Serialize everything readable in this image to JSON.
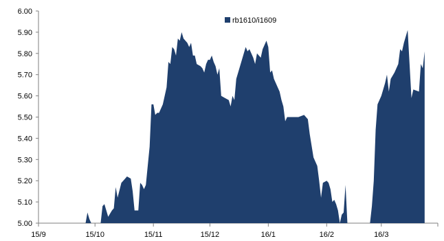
{
  "chart_data": {
    "type": "area",
    "title": "",
    "xlabel": "",
    "ylabel": "",
    "ylim": [
      5.0,
      6.0
    ],
    "xlim": [
      "2015-09-01",
      "2016-03-31"
    ],
    "y_ticks": [
      "5.00",
      "5.10",
      "5.20",
      "5.30",
      "5.40",
      "5.50",
      "5.60",
      "5.70",
      "5.80",
      "5.90",
      "6.00"
    ],
    "x_ticks": [
      {
        "label": "15/9",
        "date": "2015-09-01"
      },
      {
        "label": "15/10",
        "date": "2015-10-01"
      },
      {
        "label": "15/11",
        "date": "2015-11-01"
      },
      {
        "label": "15/12",
        "date": "2015-12-01"
      },
      {
        "label": "16/1",
        "date": "2016-01-01"
      },
      {
        "label": "16/2",
        "date": "2016-02-01"
      },
      {
        "label": "16/3",
        "date": "2016-03-01"
      }
    ],
    "legend": {
      "position": "top-center",
      "label": "rb1610/i1609"
    },
    "color": "#1f3f6d",
    "grid": false,
    "series": [
      {
        "name": "rb1610/i1609",
        "points": [
          [
            "2015-09-26",
            5.0
          ],
          [
            "2015-09-27",
            5.05
          ],
          [
            "2015-09-28",
            5.02
          ],
          [
            "2015-09-29",
            5.0
          ],
          [
            "2015-10-04",
            5.0
          ],
          [
            "2015-10-05",
            5.08
          ],
          [
            "2015-10-06",
            5.09
          ],
          [
            "2015-10-08",
            5.03
          ],
          [
            "2015-10-10",
            5.06
          ],
          [
            "2015-10-11",
            5.07
          ],
          [
            "2015-10-12",
            5.17
          ],
          [
            "2015-10-13",
            5.12
          ],
          [
            "2015-10-15",
            5.19
          ],
          [
            "2015-10-16",
            5.2
          ],
          [
            "2015-10-17",
            5.21
          ],
          [
            "2015-10-18",
            5.22
          ],
          [
            "2015-10-20",
            5.21
          ],
          [
            "2015-10-21",
            5.15
          ],
          [
            "2015-10-22",
            5.06
          ],
          [
            "2015-10-24",
            5.06
          ],
          [
            "2015-10-25",
            5.19
          ],
          [
            "2015-10-26",
            5.18
          ],
          [
            "2015-10-27",
            5.16
          ],
          [
            "2015-10-28",
            5.18
          ],
          [
            "2015-10-30",
            5.36
          ],
          [
            "2015-10-31",
            5.56
          ],
          [
            "2015-11-01",
            5.56
          ],
          [
            "2015-11-02",
            5.51
          ],
          [
            "2015-11-03",
            5.52
          ],
          [
            "2015-11-04",
            5.52
          ],
          [
            "2015-11-06",
            5.56
          ],
          [
            "2015-11-08",
            5.64
          ],
          [
            "2015-11-09",
            5.76
          ],
          [
            "2015-11-10",
            5.75
          ],
          [
            "2015-11-11",
            5.83
          ],
          [
            "2015-11-12",
            5.82
          ],
          [
            "2015-11-13",
            5.79
          ],
          [
            "2015-11-14",
            5.87
          ],
          [
            "2015-11-15",
            5.86
          ],
          [
            "2015-11-16",
            5.9
          ],
          [
            "2015-11-17",
            5.87
          ],
          [
            "2015-11-18",
            5.86
          ],
          [
            "2015-11-19",
            5.85
          ],
          [
            "2015-11-20",
            5.83
          ],
          [
            "2015-11-21",
            5.85
          ],
          [
            "2015-11-22",
            5.79
          ],
          [
            "2015-11-23",
            5.79
          ],
          [
            "2015-11-24",
            5.75
          ],
          [
            "2015-11-26",
            5.74
          ],
          [
            "2015-11-27",
            5.73
          ],
          [
            "2015-11-28",
            5.71
          ],
          [
            "2015-11-29",
            5.75
          ],
          [
            "2015-11-30",
            5.77
          ],
          [
            "2015-12-01",
            5.77
          ],
          [
            "2015-12-02",
            5.79
          ],
          [
            "2015-12-03",
            5.76
          ],
          [
            "2015-12-04",
            5.74
          ],
          [
            "2015-12-05",
            5.7
          ],
          [
            "2015-12-06",
            5.73
          ],
          [
            "2015-12-07",
            5.6
          ],
          [
            "2015-12-09",
            5.59
          ],
          [
            "2015-12-11",
            5.58
          ],
          [
            "2015-12-12",
            5.55
          ],
          [
            "2015-12-13",
            5.6
          ],
          [
            "2015-12-14",
            5.58
          ],
          [
            "2015-12-15",
            5.68
          ],
          [
            "2015-12-17",
            5.74
          ],
          [
            "2015-12-19",
            5.8
          ],
          [
            "2015-12-20",
            5.83
          ],
          [
            "2015-12-21",
            5.81
          ],
          [
            "2015-12-22",
            5.82
          ],
          [
            "2015-12-24",
            5.78
          ],
          [
            "2015-12-25",
            5.75
          ],
          [
            "2015-12-26",
            5.8
          ],
          [
            "2015-12-27",
            5.79
          ],
          [
            "2015-12-28",
            5.78
          ],
          [
            "2015-12-29",
            5.82
          ],
          [
            "2015-12-31",
            5.86
          ],
          [
            "2016-01-01",
            5.83
          ],
          [
            "2016-01-02",
            5.71
          ],
          [
            "2016-01-03",
            5.72
          ],
          [
            "2016-01-04",
            5.68
          ],
          [
            "2016-01-06",
            5.64
          ],
          [
            "2016-01-07",
            5.62
          ],
          [
            "2016-01-08",
            5.58
          ],
          [
            "2016-01-09",
            5.55
          ],
          [
            "2016-01-10",
            5.48
          ],
          [
            "2016-01-11",
            5.5
          ],
          [
            "2016-01-14",
            5.5
          ],
          [
            "2016-01-17",
            5.5
          ],
          [
            "2016-01-20",
            5.51
          ],
          [
            "2016-01-22",
            5.49
          ],
          [
            "2016-01-23",
            5.42
          ],
          [
            "2016-01-25",
            5.31
          ],
          [
            "2016-01-27",
            5.27
          ],
          [
            "2016-01-28",
            5.2
          ],
          [
            "2016-01-29",
            5.12
          ],
          [
            "2016-01-30",
            5.19
          ],
          [
            "2016-02-01",
            5.2
          ],
          [
            "2016-02-02",
            5.19
          ],
          [
            "2016-02-03",
            5.16
          ],
          [
            "2016-02-04",
            5.1
          ],
          [
            "2016-02-05",
            5.11
          ],
          [
            "2016-02-06",
            5.09
          ],
          [
            "2016-02-07",
            5.06
          ],
          [
            "2016-02-08",
            5.0
          ],
          [
            "2016-02-09",
            5.04
          ],
          [
            "2016-02-10",
            5.05
          ],
          [
            "2016-02-11",
            5.18
          ],
          [
            "2016-02-12",
            5.0
          ],
          [
            "2016-02-24",
            5.0
          ],
          [
            "2016-02-25",
            5.08
          ],
          [
            "2016-02-26",
            5.2
          ],
          [
            "2016-02-27",
            5.44
          ],
          [
            "2016-02-28",
            5.56
          ],
          [
            "2016-03-01",
            5.6
          ],
          [
            "2016-03-03",
            5.66
          ],
          [
            "2016-03-04",
            5.7
          ],
          [
            "2016-03-05",
            5.62
          ],
          [
            "2016-03-06",
            5.68
          ],
          [
            "2016-03-08",
            5.71
          ],
          [
            "2016-03-10",
            5.75
          ],
          [
            "2016-03-11",
            5.82
          ],
          [
            "2016-03-12",
            5.81
          ],
          [
            "2016-03-13",
            5.85
          ],
          [
            "2016-03-15",
            5.91
          ],
          [
            "2016-03-16",
            5.75
          ],
          [
            "2016-03-17",
            5.59
          ],
          [
            "2016-03-18",
            5.63
          ],
          [
            "2016-03-21",
            5.62
          ],
          [
            "2016-03-22",
            5.75
          ],
          [
            "2016-03-23",
            5.73
          ],
          [
            "2016-03-24",
            5.81
          ]
        ]
      }
    ]
  }
}
